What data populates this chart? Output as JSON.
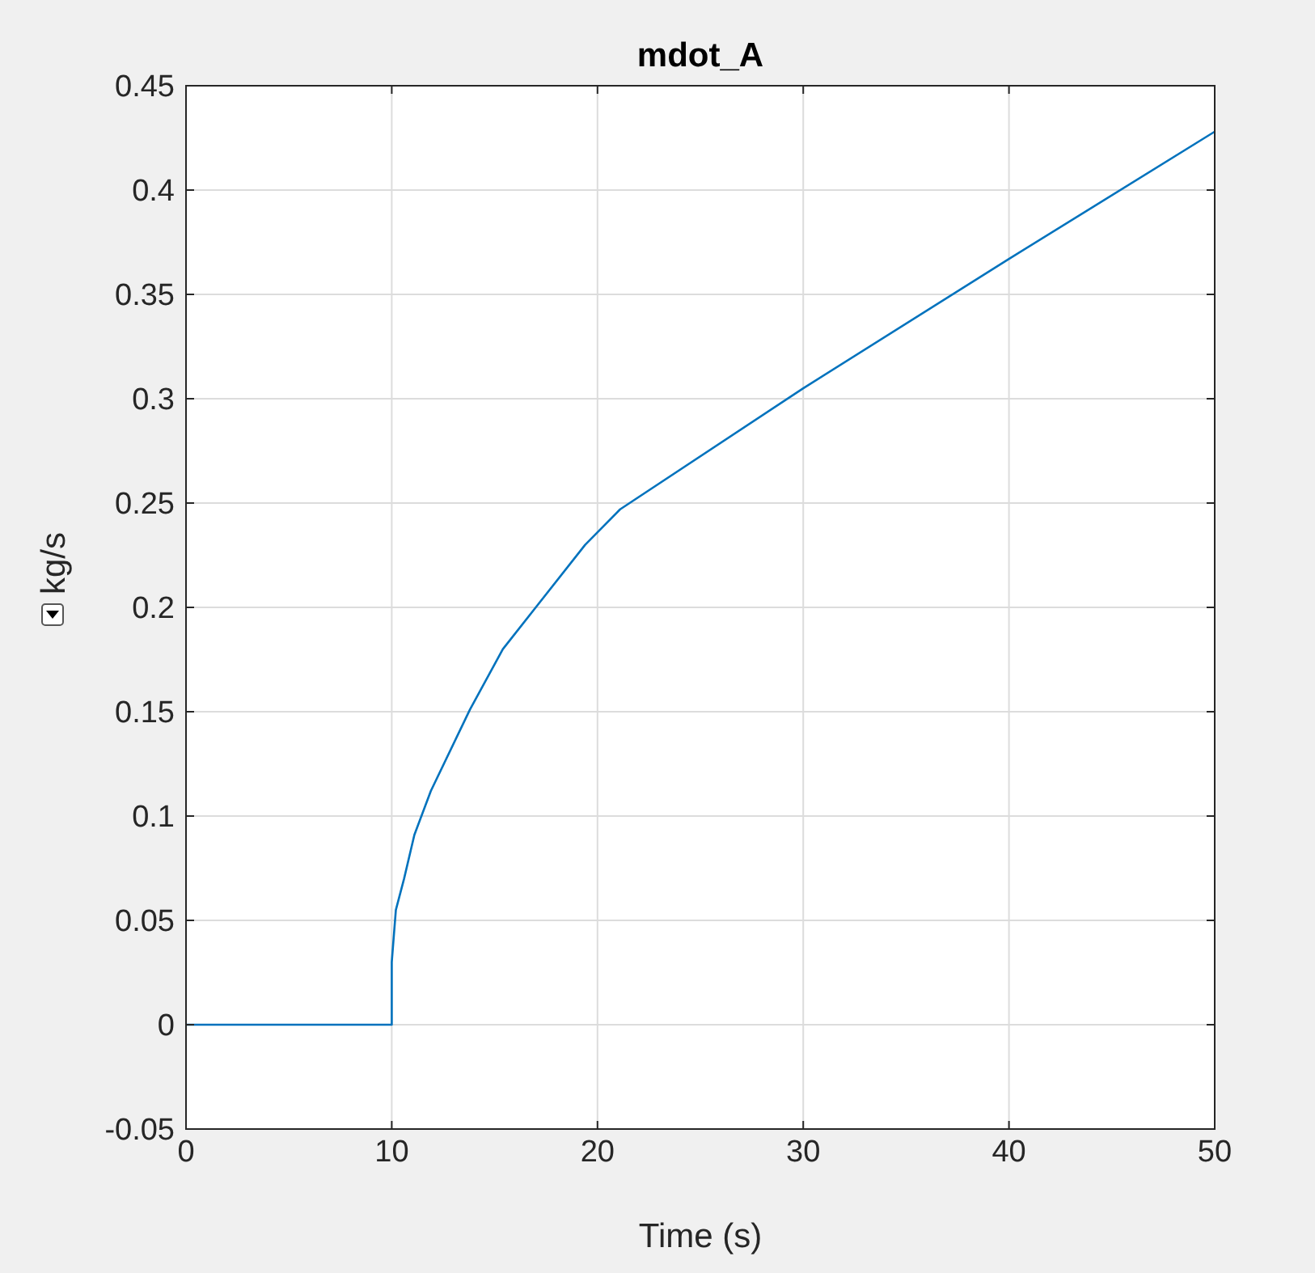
{
  "chart_data": {
    "type": "line",
    "title": "mdot_A",
    "xlabel": "Time (s)",
    "ylabel": "kg/s",
    "series": [
      {
        "color": "#0072bd",
        "x": [
          0,
          10,
          10,
          10.2,
          10.6,
          11.1,
          11.9,
          13.8,
          15.4,
          17.0,
          19.4,
          21.1,
          30,
          40,
          50
        ],
        "values": [
          0,
          0,
          0.03,
          0.055,
          0.07,
          0.091,
          0.112,
          0.151,
          0.18,
          0.2,
          0.23,
          0.247,
          0.305,
          0.367,
          0.428
        ]
      }
    ],
    "xlim": [
      0,
      50
    ],
    "xticks": [
      0,
      10,
      20,
      30,
      40,
      50
    ],
    "ylim": [
      -0.05,
      0.45
    ],
    "yticks": [
      -0.05,
      0,
      0.05,
      0.1,
      0.15,
      0.2,
      0.25,
      0.3,
      0.35,
      0.4,
      0.45
    ],
    "grid": true,
    "marker": "none",
    "line_style": "solid"
  }
}
